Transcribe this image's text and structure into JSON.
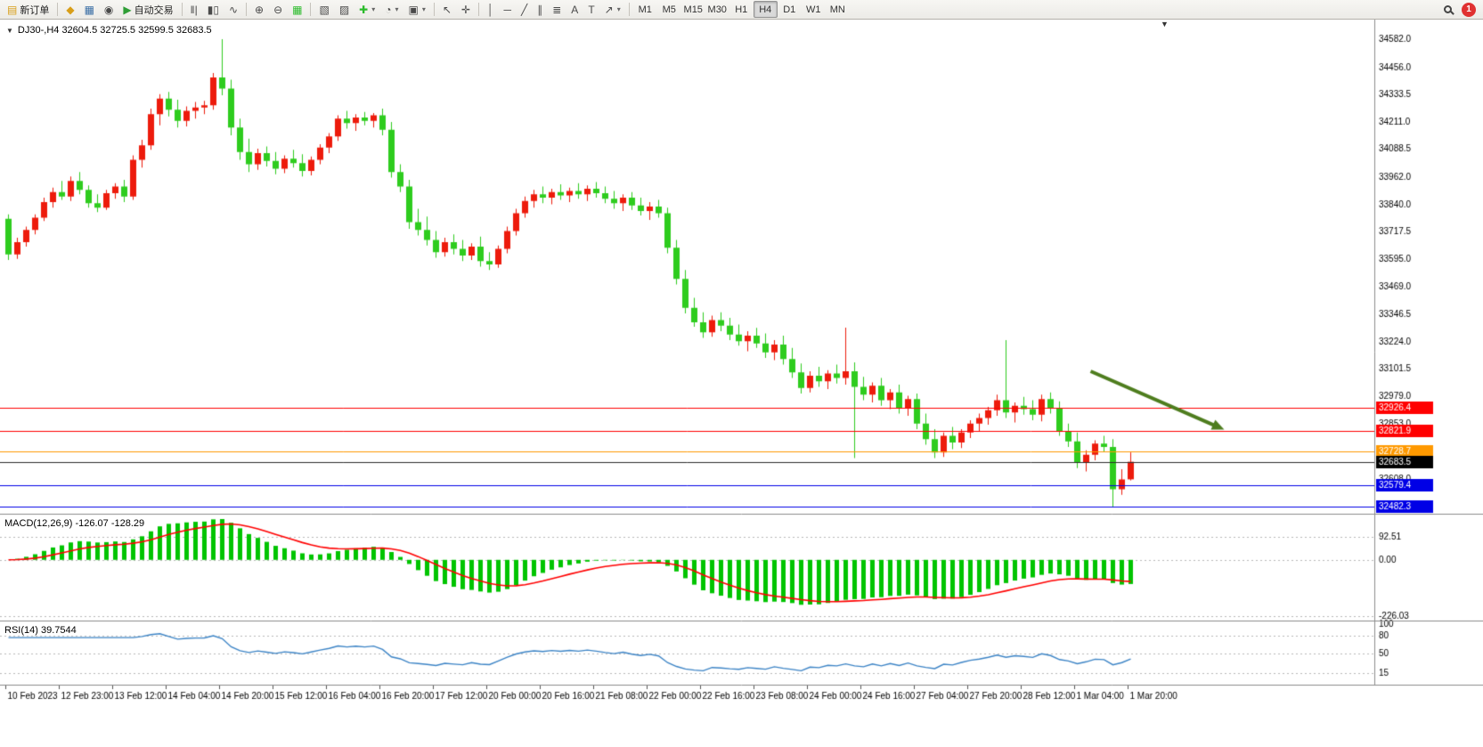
{
  "icons": {
    "new-order": "▤",
    "market-watch": "◆",
    "data-window": "▦",
    "navigator": "◉",
    "auto-trading": "▶",
    "bars-chart": "‖|",
    "candles-chart": "▮▯",
    "line-chart": "∿",
    "zoom-in": "⊕",
    "zoom-out": "⊖",
    "tile-windows": "▦",
    "new-chart": "▧",
    "profiles": "▨",
    "indicators": "✚",
    "periods": "◔",
    "templates": "▣",
    "cursor": "↖",
    "crosshair": "✛",
    "vertical-line": "│",
    "horizontal-line": "─",
    "trendline": "╱",
    "channel": "∥",
    "fibonacci": "≣",
    "text": "A",
    "text-label": "T",
    "arrows": "↗",
    "dropdown": "▾",
    "expander": "▼",
    "shift-marker": "▼"
  },
  "toolbar": {
    "new_order_label": "新订单",
    "auto_trading_label": "自动交易",
    "timeframes": [
      "M1",
      "M5",
      "M15",
      "M30",
      "H1",
      "H4",
      "D1",
      "W1",
      "MN"
    ],
    "active_timeframe": "H4",
    "notification_count": "1"
  },
  "chart": {
    "symbol_info": "DJ30-,H4 32604.5 32725.5 32599.5 32683.5",
    "macd_label": "MACD(12,26,9) -126.07 -128.29",
    "rsi_label": "RSI(14) 39.7544"
  },
  "chart_data": {
    "type": "candlestick",
    "symbol": "DJ30-",
    "timeframe": "H4",
    "current_bar": {
      "open": 32604.5,
      "high": 32725.5,
      "low": 32599.5,
      "close": 32683.5
    },
    "up_color": "#ED1B0C",
    "down_color": "#2ECC1E",
    "price_axis": {
      "min": 32450,
      "max": 34670,
      "labels": [
        "34582.0",
        "34456.0",
        "34333.5",
        "34211.0",
        "34088.5",
        "33962.0",
        "33840.0",
        "33717.5",
        "33595.0",
        "33469.0",
        "33346.5",
        "33224.0",
        "33101.5",
        "32979.0",
        "32853.0",
        "32730.5",
        "32608.0",
        "32485.5"
      ]
    },
    "bars_per_time_label": 6,
    "time_labels": [
      "10 Feb 2023",
      "12 Feb 23:00",
      "13 Feb 12:00",
      "14 Feb 04:00",
      "14 Feb 20:00",
      "15 Feb 12:00",
      "16 Feb 04:00",
      "16 Feb 20:00",
      "17 Feb 12:00",
      "20 Feb 00:00",
      "20 Feb 16:00",
      "21 Feb 08:00",
      "22 Feb 00:00",
      "22 Feb 16:00",
      "23 Feb 08:00",
      "24 Feb 00:00",
      "24 Feb 16:00",
      "27 Feb 04:00",
      "27 Feb 20:00",
      "28 Feb 12:00",
      "1 Mar 04:00",
      "1 Mar 20:00"
    ],
    "candles": [
      [
        33775,
        33795,
        33590,
        33615
      ],
      [
        33615,
        33690,
        33595,
        33670
      ],
      [
        33670,
        33740,
        33650,
        33725
      ],
      [
        33725,
        33795,
        33705,
        33780
      ],
      [
        33780,
        33870,
        33765,
        33850
      ],
      [
        33850,
        33915,
        33825,
        33895
      ],
      [
        33895,
        33945,
        33860,
        33875
      ],
      [
        33875,
        33965,
        33855,
        33945
      ],
      [
        33945,
        33985,
        33885,
        33905
      ],
      [
        33905,
        33925,
        33825,
        33845
      ],
      [
        33845,
        33885,
        33805,
        33825
      ],
      [
        33825,
        33905,
        33815,
        33890
      ],
      [
        33890,
        33935,
        33865,
        33920
      ],
      [
        33920,
        33950,
        33850,
        33875
      ],
      [
        33875,
        34060,
        33860,
        34040
      ],
      [
        34040,
        34130,
        34005,
        34105
      ],
      [
        34105,
        34270,
        34085,
        34245
      ],
      [
        34245,
        34335,
        34195,
        34315
      ],
      [
        34315,
        34345,
        34235,
        34265
      ],
      [
        34265,
        34310,
        34185,
        34215
      ],
      [
        34215,
        34280,
        34190,
        34260
      ],
      [
        34260,
        34300,
        34225,
        34275
      ],
      [
        34275,
        34305,
        34245,
        34285
      ],
      [
        34285,
        34430,
        34265,
        34410
      ],
      [
        34410,
        34582,
        34330,
        34360
      ],
      [
        34360,
        34400,
        34150,
        34185
      ],
      [
        34185,
        34225,
        34040,
        34075
      ],
      [
        34075,
        34135,
        33985,
        34020
      ],
      [
        34020,
        34090,
        33995,
        34070
      ],
      [
        34070,
        34100,
        34010,
        34035
      ],
      [
        34035,
        34075,
        33975,
        34000
      ],
      [
        34000,
        34060,
        33980,
        34045
      ],
      [
        34045,
        34085,
        34005,
        34025
      ],
      [
        34025,
        34065,
        33965,
        33990
      ],
      [
        33990,
        34055,
        33970,
        34040
      ],
      [
        34040,
        34110,
        34020,
        34095
      ],
      [
        34095,
        34160,
        34070,
        34145
      ],
      [
        34145,
        34240,
        34125,
        34225
      ],
      [
        34225,
        34260,
        34180,
        34205
      ],
      [
        34205,
        34245,
        34170,
        34230
      ],
      [
        34230,
        34255,
        34195,
        34215
      ],
      [
        34215,
        34250,
        34185,
        34240
      ],
      [
        34240,
        34270,
        34150,
        34175
      ],
      [
        34175,
        34210,
        33960,
        33985
      ],
      [
        33985,
        34020,
        33895,
        33920
      ],
      [
        33920,
        33950,
        33730,
        33760
      ],
      [
        33760,
        33820,
        33700,
        33725
      ],
      [
        33725,
        33785,
        33655,
        33680
      ],
      [
        33680,
        33720,
        33600,
        33625
      ],
      [
        33625,
        33690,
        33605,
        33670
      ],
      [
        33670,
        33705,
        33615,
        33640
      ],
      [
        33640,
        33680,
        33585,
        33610
      ],
      [
        33610,
        33665,
        33590,
        33650
      ],
      [
        33650,
        33695,
        33560,
        33585
      ],
      [
        33585,
        33625,
        33545,
        33570
      ],
      [
        33570,
        33655,
        33555,
        33640
      ],
      [
        33640,
        33740,
        33620,
        33720
      ],
      [
        33720,
        33820,
        33700,
        33800
      ],
      [
        33800,
        33875,
        33780,
        33855
      ],
      [
        33855,
        33905,
        33825,
        33885
      ],
      [
        33885,
        33920,
        33845,
        33870
      ],
      [
        33870,
        33910,
        33840,
        33895
      ],
      [
        33895,
        33930,
        33860,
        33880
      ],
      [
        33880,
        33915,
        33850,
        33900
      ],
      [
        33900,
        33935,
        33865,
        33885
      ],
      [
        33885,
        33925,
        33855,
        33910
      ],
      [
        33910,
        33940,
        33870,
        33890
      ],
      [
        33890,
        33920,
        33845,
        33865
      ],
      [
        33865,
        33900,
        33820,
        33845
      ],
      [
        33845,
        33885,
        33810,
        33870
      ],
      [
        33870,
        33895,
        33815,
        33835
      ],
      [
        33835,
        33870,
        33790,
        33810
      ],
      [
        33810,
        33850,
        33770,
        33830
      ],
      [
        33830,
        33860,
        33780,
        33800
      ],
      [
        33800,
        33825,
        33620,
        33645
      ],
      [
        33645,
        33680,
        33480,
        33505
      ],
      [
        33505,
        33545,
        33350,
        33375
      ],
      [
        33375,
        33420,
        33290,
        33310
      ],
      [
        33310,
        33355,
        33240,
        33265
      ],
      [
        33265,
        33340,
        33245,
        33320
      ],
      [
        33320,
        33355,
        33270,
        33295
      ],
      [
        33295,
        33330,
        33230,
        33255
      ],
      [
        33255,
        33300,
        33205,
        33225
      ],
      [
        33225,
        33270,
        33180,
        33250
      ],
      [
        33250,
        33285,
        33195,
        33215
      ],
      [
        33215,
        33260,
        33150,
        33175
      ],
      [
        33175,
        33230,
        33140,
        33210
      ],
      [
        33210,
        33250,
        33120,
        33145
      ],
      [
        33145,
        33195,
        33060,
        33085
      ],
      [
        33085,
        33125,
        32990,
        33015
      ],
      [
        33015,
        33090,
        32995,
        33070
      ],
      [
        33070,
        33110,
        33020,
        33045
      ],
      [
        33045,
        33095,
        33010,
        33080
      ],
      [
        33080,
        33120,
        33035,
        33060
      ],
      [
        33060,
        33286,
        33030,
        33090
      ],
      [
        33090,
        33130,
        32700,
        33020
      ],
      [
        33020,
        33065,
        32960,
        32985
      ],
      [
        32985,
        33040,
        32950,
        33025
      ],
      [
        33025,
        33060,
        32935,
        32960
      ],
      [
        32960,
        33010,
        32920,
        32995
      ],
      [
        32995,
        33030,
        32900,
        32925
      ],
      [
        32925,
        32980,
        32890,
        32965
      ],
      [
        32965,
        32990,
        32830,
        32855
      ],
      [
        32855,
        32900,
        32760,
        32785
      ],
      [
        32785,
        32830,
        32700,
        32725
      ],
      [
        32725,
        32815,
        32705,
        32800
      ],
      [
        32800,
        32840,
        32740,
        32770
      ],
      [
        32770,
        32830,
        32745,
        32815
      ],
      [
        32815,
        32870,
        32790,
        32855
      ],
      [
        32855,
        32900,
        32820,
        32880
      ],
      [
        32880,
        32930,
        32850,
        32915
      ],
      [
        32915,
        32985,
        32890,
        32960
      ],
      [
        32960,
        33230,
        32880,
        32905
      ],
      [
        32905,
        32950,
        32860,
        32935
      ],
      [
        32935,
        32975,
        32895,
        32920
      ],
      [
        32920,
        32960,
        32870,
        32895
      ],
      [
        32895,
        32985,
        32865,
        32965
      ],
      [
        32965,
        32995,
        32900,
        32925
      ],
      [
        32925,
        32955,
        32800,
        32820
      ],
      [
        32820,
        32855,
        32750,
        32775
      ],
      [
        32775,
        32815,
        32655,
        32680
      ],
      [
        32680,
        32735,
        32640,
        32715
      ],
      [
        32715,
        32780,
        32690,
        32765
      ],
      [
        32765,
        32800,
        32730,
        32750
      ],
      [
        32750,
        32785,
        32482,
        32560
      ],
      [
        32560,
        32650,
        32535,
        32604
      ],
      [
        32604.5,
        32725.5,
        32599.5,
        32683.5
      ]
    ],
    "hlines": [
      {
        "price": 32926.4,
        "label": "32926.4",
        "color": "#FF0000"
      },
      {
        "price": 32821.9,
        "label": "32821.9",
        "color": "#FF0000"
      },
      {
        "price": 32728.7,
        "label": "32728.7",
        "color": "#FF9900"
      },
      {
        "price": 32579.4,
        "label": "32579.4",
        "color": "#0000E6"
      },
      {
        "price": 32482.3,
        "label": "32482.3",
        "color": "#0000E6"
      }
    ],
    "bid_line": {
      "price": 32683.5,
      "label": "32683.5",
      "line_color": "#2b2b2b",
      "tag_color": "#000000"
    },
    "annotations": [
      {
        "type": "arrow",
        "from_bar": 121.5,
        "from_price": 33090,
        "to_bar": 136.5,
        "to_price": 32828,
        "color": "#4E7D1E",
        "width": 4
      }
    ],
    "indicators": [
      {
        "name": "MACD",
        "params": [
          12,
          26,
          9
        ],
        "display_values": "-126.07 -128.29",
        "levels": [
          92.51,
          0,
          -226.03
        ],
        "axis_labels": [
          "92.51",
          "0.00",
          "-226.03"
        ],
        "histogram_color": "#00C400",
        "signal_color": "#FF0000"
      },
      {
        "name": "RSI",
        "params": [
          14
        ],
        "display_value": "39.7544",
        "levels": [
          80,
          50,
          15
        ],
        "axis_labels": [
          "100",
          "80",
          "50",
          "15"
        ],
        "line_color": "#3C84C6"
      }
    ]
  }
}
